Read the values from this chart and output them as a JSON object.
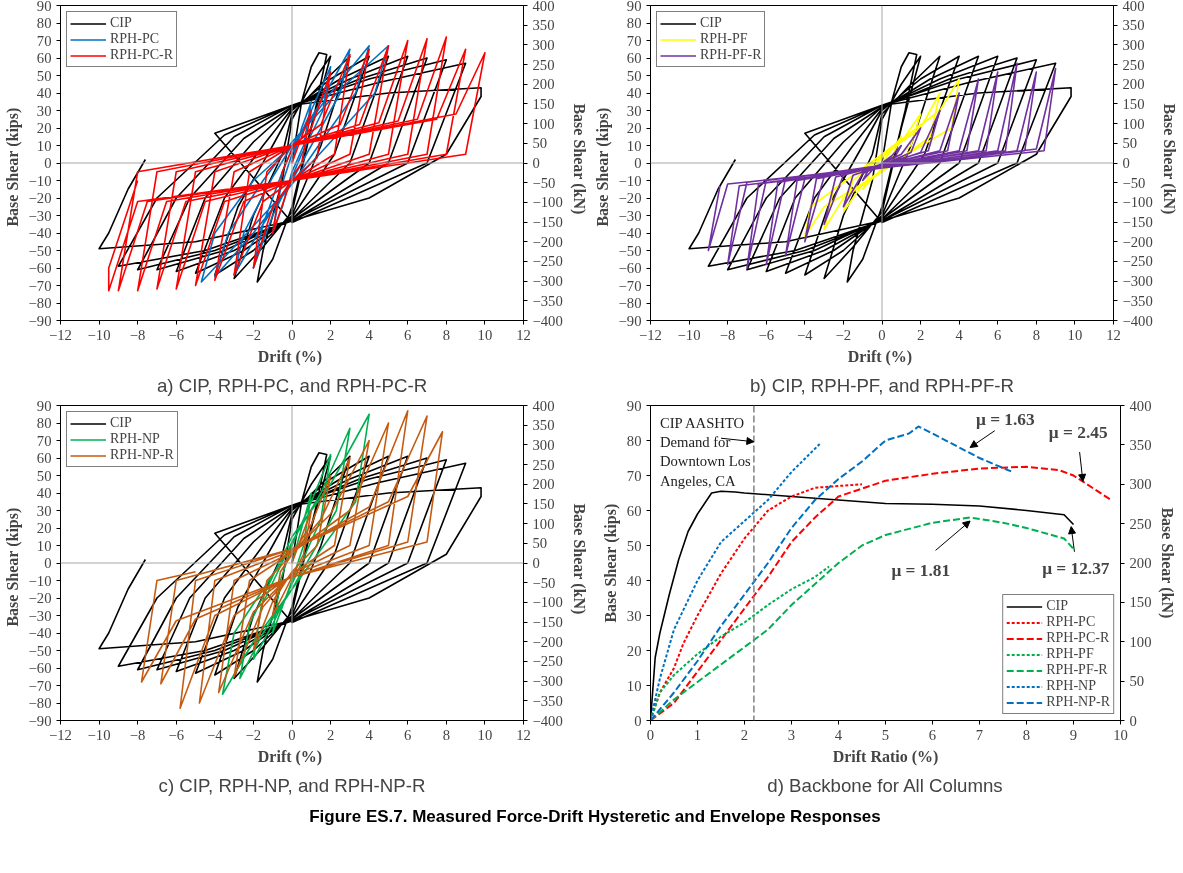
{
  "chart_data": [
    {
      "type": "line",
      "title": "a) CIP, RPH-PC, and RPH-PC-R",
      "xlabel": "Drift  (%)",
      "ylabel": "Base  Shear  (kips)",
      "y2label": "Base  Shear  (kN)",
      "xlim": [
        -12,
        12
      ],
      "xticks": [
        -12,
        -10,
        -8,
        -6,
        -4,
        -2,
        0,
        2,
        4,
        6,
        8,
        10,
        12
      ],
      "ylim": [
        -90,
        90
      ],
      "yticks": [
        -90,
        -80,
        -70,
        -60,
        -50,
        -40,
        -30,
        -20,
        -10,
        0,
        10,
        20,
        30,
        40,
        50,
        60,
        70,
        80,
        90
      ],
      "y2lim": [
        -400,
        400
      ],
      "y2ticks": [
        -400,
        -350,
        -300,
        -250,
        -200,
        -150,
        -100,
        -50,
        0,
        50,
        100,
        150,
        200,
        250,
        300,
        350,
        400
      ],
      "grid": false,
      "legend": "top left",
      "line_style": "solid",
      "ref_lines": [
        {
          "axis": "x",
          "value": 0,
          "color": "#a6a6a6"
        },
        {
          "axis": "y",
          "value": 0,
          "color": "#a6a6a6"
        }
      ],
      "series": [
        {
          "name": "CIP",
          "color": "#000000",
          "x": [
            0,
            0.5,
            1,
            1.4,
            1.8,
            1.2,
            0,
            -1,
            -1.8,
            -1.5,
            -0.5,
            0,
            1,
            2,
            1,
            0,
            -1.5,
            -3,
            -2,
            -0.5,
            0,
            1.5,
            3,
            1.5,
            0,
            -2,
            -4,
            -2.8,
            -1,
            0,
            2,
            4,
            2.2,
            0,
            -2.5,
            -5,
            -3.5,
            -1.5,
            0,
            2.5,
            5,
            3,
            0,
            -3,
            -6,
            -4.5,
            -2,
            0,
            3,
            6,
            4,
            0,
            -3.5,
            -7,
            -5.3,
            -2.5,
            0,
            3.5,
            7,
            5,
            0,
            -4,
            -8,
            -6,
            -3,
            0,
            4,
            8,
            6,
            0,
            -4.5,
            -9,
            -7,
            -3.5,
            0,
            4.5,
            9,
            7,
            0,
            -4,
            0,
            5,
            9.8,
            9.8,
            8,
            4,
            0,
            -5,
            -10,
            -9.5,
            -8.5,
            -7.6
          ],
          "values": [
            0,
            35,
            55,
            63,
            62,
            30,
            -25,
            -55,
            -68,
            -50,
            -10,
            25,
            45,
            61,
            20,
            -28,
            -48,
            -66,
            -30,
            5,
            28,
            45,
            61,
            10,
            -30,
            -50,
            -64,
            -25,
            10,
            30,
            48,
            61,
            5,
            -31,
            -50,
            -63,
            -20,
            10,
            31,
            48,
            61,
            0,
            -32,
            -50,
            -62,
            -20,
            12,
            32,
            48,
            61,
            0,
            -32,
            -50,
            -61,
            -20,
            14,
            32,
            48,
            60,
            0,
            -33,
            -50,
            -61,
            -20,
            15,
            33,
            48,
            59,
            0,
            -33,
            -50,
            -59,
            -20,
            16,
            33,
            46,
            57,
            0,
            -34,
            17,
            33,
            40,
            43,
            38,
            5,
            -20,
            -33,
            -45,
            -49,
            -40,
            -15,
            2
          ]
        },
        {
          "name": "RPH-PC",
          "color": "#0070c0",
          "x": [
            0,
            0.5,
            1,
            0.6,
            0,
            -0.5,
            -1,
            -0.6,
            0,
            1,
            2,
            1.6,
            0.5,
            0,
            -1,
            -2,
            -1.5,
            -0.5,
            0,
            1.5,
            3,
            2.5,
            1,
            0,
            -1.5,
            -3,
            -2.5,
            -1,
            0,
            2,
            4,
            3.3,
            1.5,
            0,
            -2,
            -4,
            -3.3,
            -1.5,
            0,
            2.5,
            5,
            4.3,
            2,
            0,
            -2.5,
            -4.7,
            -4,
            -2,
            0
          ],
          "values": [
            0,
            20,
            35,
            10,
            -5,
            -25,
            -40,
            -15,
            5,
            30,
            55,
            30,
            5,
            -8,
            -30,
            -60,
            -35,
            -5,
            8,
            35,
            65,
            40,
            10,
            -10,
            -35,
            -64,
            -40,
            -8,
            10,
            40,
            67,
            40,
            12,
            -12,
            -40,
            -65,
            -40,
            -10,
            12,
            42,
            67,
            40,
            12,
            -12,
            -42,
            -68,
            -40,
            -10,
            10
          ]
        },
        {
          "name": "RPH-PC-R",
          "color": "#ff0000",
          "x": [
            0,
            1,
            0.5,
            0,
            -1,
            -0.5,
            0,
            1,
            2,
            1.3,
            0,
            -1,
            -2,
            -1.3,
            0,
            1.5,
            3,
            2.2,
            0,
            -1.5,
            -3,
            -2.2,
            0,
            2.5,
            4,
            3,
            0,
            -2.5,
            -4,
            -3,
            0,
            3.5,
            5,
            4,
            0,
            -3.5,
            -5,
            -4,
            0,
            4.5,
            6,
            5,
            0,
            -4.5,
            -6,
            -5,
            0,
            5.5,
            7,
            6,
            0,
            -5.5,
            -7,
            -6,
            0,
            6.5,
            8,
            7,
            0,
            -6.5,
            -8,
            -7,
            0,
            7.5,
            9,
            8,
            0,
            -7.5,
            -9,
            -8,
            0,
            8.5,
            10,
            9,
            0,
            -8,
            -9.5,
            -9.5,
            -8
          ],
          "values": [
            0,
            30,
            0,
            -8,
            -40,
            -5,
            8,
            20,
            52,
            3,
            -10,
            -25,
            -60,
            -5,
            10,
            22,
            62,
            5,
            -10,
            -22,
            -64,
            -5,
            10,
            22,
            65,
            5,
            -10,
            -22,
            -67,
            -5,
            10,
            22,
            67,
            5,
            -10,
            -22,
            -70,
            -5,
            10,
            23,
            70,
            5,
            -10,
            -22,
            -72,
            -5,
            10,
            24,
            71,
            5,
            -10,
            -22,
            -72,
            -5,
            10,
            25,
            72,
            5,
            -10,
            -22,
            -73,
            -5,
            10,
            25,
            65,
            5,
            -10,
            -22,
            -73,
            -5,
            10,
            28,
            63,
            5,
            -10,
            -22,
            -73,
            -60,
            -10
          ]
        }
      ]
    },
    {
      "type": "line",
      "title": "b) CIP, RPH-PF, and RPH-PF-R",
      "xlabel": "Drift  (%)",
      "ylabel": "Base  Shear  (kips)",
      "y2label": "Base  Shear  (kN)",
      "xlim": [
        -12,
        12
      ],
      "xticks": [
        -12,
        -10,
        -8,
        -6,
        -4,
        -2,
        0,
        2,
        4,
        6,
        8,
        10,
        12
      ],
      "ylim": [
        -90,
        90
      ],
      "yticks": [
        -90,
        -80,
        -70,
        -60,
        -50,
        -40,
        -30,
        -20,
        -10,
        0,
        10,
        20,
        30,
        40,
        50,
        60,
        70,
        80,
        90
      ],
      "y2lim": [
        -400,
        400
      ],
      "y2ticks": [
        -400,
        -350,
        -300,
        -250,
        -200,
        -150,
        -100,
        -50,
        0,
        50,
        100,
        150,
        200,
        250,
        300,
        350,
        400
      ],
      "grid": false,
      "legend": "top left",
      "line_style": "solid",
      "ref_lines": [
        {
          "axis": "x",
          "value": 0,
          "color": "#a6a6a6"
        },
        {
          "axis": "y",
          "value": 0,
          "color": "#a6a6a6"
        }
      ],
      "series": [
        {
          "name": "CIP",
          "color": "#000000",
          "x": [
            0,
            0.5,
            1,
            1.4,
            1.8,
            1.2,
            0,
            -1,
            -1.8,
            -1.5,
            -0.5,
            0,
            1,
            2,
            1,
            0,
            -1.5,
            -3,
            -2,
            -0.5,
            0,
            1.5,
            3,
            1.5,
            0,
            -2,
            -4,
            -2.8,
            -1,
            0,
            2,
            4,
            2.2,
            0,
            -2.5,
            -5,
            -3.5,
            -1.5,
            0,
            2.5,
            5,
            3,
            0,
            -3,
            -6,
            -4.5,
            -2,
            0,
            3,
            6,
            4,
            0,
            -3.5,
            -7,
            -5.3,
            -2.5,
            0,
            3.5,
            7,
            5,
            0,
            -4,
            -8,
            -6,
            -3,
            0,
            4,
            8,
            6,
            0,
            -4.5,
            -9,
            -7,
            -3.5,
            0,
            4.5,
            9,
            7,
            0,
            -4,
            0,
            5,
            9.8,
            9.8,
            8,
            4,
            0,
            -5,
            -10,
            -9.5,
            -8.5,
            -7.6
          ],
          "values": [
            0,
            35,
            55,
            63,
            62,
            30,
            -25,
            -55,
            -68,
            -50,
            -10,
            25,
            45,
            61,
            20,
            -28,
            -48,
            -66,
            -30,
            5,
            28,
            45,
            61,
            10,
            -30,
            -50,
            -64,
            -25,
            10,
            30,
            48,
            61,
            5,
            -31,
            -50,
            -63,
            -20,
            10,
            31,
            48,
            61,
            0,
            -32,
            -50,
            -62,
            -20,
            12,
            32,
            48,
            61,
            0,
            -32,
            -50,
            -61,
            -20,
            14,
            32,
            48,
            60,
            0,
            -33,
            -50,
            -61,
            -20,
            15,
            33,
            48,
            59,
            0,
            -33,
            -50,
            -59,
            -20,
            16,
            33,
            46,
            57,
            0,
            -34,
            17,
            33,
            40,
            43,
            38,
            5,
            -20,
            -33,
            -45,
            -49,
            -40,
            -15,
            2
          ]
        },
        {
          "name": "RPH-PF",
          "color": "#ffff00",
          "x": [
            0,
            1,
            0.5,
            0,
            -1,
            -0.5,
            0,
            1,
            2,
            1.5,
            0,
            -1,
            -2,
            -1.5,
            0,
            2,
            3,
            2.5,
            0,
            -2,
            -3,
            -2.5,
            0,
            3,
            4,
            3.6,
            1,
            0,
            -3,
            -4,
            -3.7,
            -1,
            0
          ],
          "values": [
            0,
            15,
            3,
            -3,
            -15,
            -3,
            3,
            12,
            28,
            10,
            -4,
            -12,
            -28,
            -10,
            4,
            20,
            40,
            15,
            -5,
            -20,
            -38,
            -15,
            5,
            30,
            48,
            20,
            3,
            -5,
            -25,
            -42,
            -25,
            -3,
            3
          ]
        },
        {
          "name": "RPH-PF-R",
          "color": "#7030a0",
          "x": [
            0,
            0.5,
            1,
            0.7,
            -0.5,
            -1,
            -0.7,
            1,
            2,
            1.5,
            -1,
            -2,
            -1.5,
            2,
            3,
            2.4,
            -2,
            -3,
            -2.4,
            3,
            4,
            3.4,
            -3,
            -4,
            -3.4,
            4,
            5,
            4.4,
            -4,
            -5,
            -4.4,
            5,
            6,
            5.4,
            -5,
            -6,
            -5.4,
            6,
            7,
            6.4,
            -6,
            -7,
            -6.4,
            7,
            8,
            7.4,
            -7,
            -8,
            -7.4,
            8,
            9,
            8.4,
            -8,
            -9,
            -8.4
          ],
          "values": [
            0,
            4,
            10,
            4,
            -4,
            -10,
            -4,
            5,
            20,
            6,
            -6,
            -25,
            -7,
            6,
            30,
            7,
            -7,
            -35,
            -8,
            7,
            40,
            7,
            -8,
            -45,
            -9,
            7,
            48,
            7,
            -9,
            -53,
            -10,
            7,
            52,
            7,
            -9,
            -58,
            -11,
            7,
            57,
            7,
            -10,
            -60,
            -12,
            7,
            52,
            7,
            -11,
            -58,
            -13,
            8,
            54,
            7,
            -12,
            -50,
            -13
          ]
        }
      ]
    },
    {
      "type": "line",
      "title": "c) CIP, RPH-NP, and RPH-NP-R",
      "xlabel": "Drift  (%)",
      "ylabel": "Base  Shear  (kips)",
      "y2label": "Base  Shear  (kN)",
      "xlim": [
        -12,
        12
      ],
      "xticks": [
        -12,
        -10,
        -8,
        -6,
        -4,
        -2,
        0,
        2,
        4,
        6,
        8,
        10,
        12
      ],
      "ylim": [
        -90,
        90
      ],
      "yticks": [
        -90,
        -80,
        -70,
        -60,
        -50,
        -40,
        -30,
        -20,
        -10,
        0,
        10,
        20,
        30,
        40,
        50,
        60,
        70,
        80,
        90
      ],
      "y2lim": [
        -400,
        400
      ],
      "y2ticks": [
        -400,
        -350,
        -300,
        -250,
        -200,
        -150,
        -100,
        -50,
        0,
        50,
        100,
        150,
        200,
        250,
        300,
        350,
        400
      ],
      "grid": false,
      "legend": "top left",
      "line_style": "solid",
      "ref_lines": [
        {
          "axis": "x",
          "value": 0,
          "color": "#a6a6a6"
        },
        {
          "axis": "y",
          "value": 0,
          "color": "#a6a6a6"
        }
      ],
      "series": [
        {
          "name": "CIP",
          "color": "#000000",
          "x": [
            0,
            0.5,
            1,
            1.4,
            1.8,
            1.2,
            0,
            -1,
            -1.8,
            -1.5,
            -0.5,
            0,
            1,
            2,
            1,
            0,
            -1.5,
            -3,
            -2,
            -0.5,
            0,
            1.5,
            3,
            1.5,
            0,
            -2,
            -4,
            -2.8,
            -1,
            0,
            2,
            4,
            2.2,
            0,
            -2.5,
            -5,
            -3.5,
            -1.5,
            0,
            2.5,
            5,
            3,
            0,
            -3,
            -6,
            -4.5,
            -2,
            0,
            3,
            6,
            4,
            0,
            -3.5,
            -7,
            -5.3,
            -2.5,
            0,
            3.5,
            7,
            5,
            0,
            -4,
            -8,
            -6,
            -3,
            0,
            4,
            8,
            6,
            0,
            -4.5,
            -9,
            -7,
            -3.5,
            0,
            4.5,
            9,
            7,
            0,
            -4,
            0,
            5,
            9.8,
            9.8,
            8,
            4,
            0,
            -5,
            -10,
            -9.5,
            -8.5,
            -7.6
          ],
          "values": [
            0,
            35,
            55,
            63,
            62,
            30,
            -25,
            -55,
            -68,
            -50,
            -10,
            25,
            45,
            61,
            20,
            -28,
            -48,
            -66,
            -30,
            5,
            28,
            45,
            61,
            10,
            -30,
            -50,
            -64,
            -25,
            10,
            30,
            48,
            61,
            5,
            -31,
            -50,
            -63,
            -20,
            10,
            31,
            48,
            61,
            0,
            -32,
            -50,
            -62,
            -20,
            12,
            32,
            48,
            61,
            0,
            -32,
            -50,
            -61,
            -20,
            14,
            32,
            48,
            60,
            0,
            -33,
            -50,
            -61,
            -20,
            15,
            33,
            48,
            59,
            0,
            -33,
            -50,
            -59,
            -20,
            16,
            33,
            46,
            57,
            0,
            -34,
            17,
            33,
            40,
            43,
            38,
            5,
            -20,
            -33,
            -45,
            -49,
            -40,
            -15,
            2
          ]
        },
        {
          "name": "RPH-NP",
          "color": "#00b050",
          "x": [
            0,
            0.5,
            1,
            0.6,
            0,
            -0.5,
            -1,
            -0.6,
            0,
            1,
            2,
            1.5,
            0,
            -1,
            -2,
            -1.6,
            0,
            1.5,
            3,
            2.3,
            0,
            -1.5,
            -2.7,
            -2.2,
            0,
            2,
            4,
            3.3,
            0,
            -2,
            -3.6,
            -3,
            0
          ],
          "values": [
            0,
            20,
            40,
            10,
            -10,
            -25,
            -40,
            -10,
            10,
            35,
            62,
            25,
            -12,
            -35,
            -55,
            -25,
            12,
            40,
            77,
            30,
            -15,
            -40,
            -66,
            -35,
            15,
            45,
            85,
            35,
            -15,
            -45,
            -75,
            -40,
            10
          ]
        },
        {
          "name": "RPH-NP-R",
          "color": "#c55a11",
          "x": [
            0,
            1,
            0.6,
            -1,
            -0.6,
            0,
            1,
            2,
            1.3,
            0,
            -1,
            -2,
            -1.3,
            0,
            1.5,
            3,
            2.2,
            0,
            -1.5,
            -3,
            -2.2,
            0,
            2,
            4,
            3,
            0,
            -2,
            -3.8,
            -3,
            0,
            3,
            5,
            4,
            0,
            -3,
            -4.8,
            -4,
            0,
            4,
            6,
            5,
            0,
            -4,
            -5.8,
            -5,
            0,
            5,
            7,
            6,
            0,
            -5,
            -6.8,
            -6,
            0,
            6,
            7.8,
            7,
            0,
            -6,
            -7.8,
            -7,
            -5
          ],
          "values": [
            0,
            30,
            5,
            -30,
            -5,
            5,
            22,
            50,
            10,
            -5,
            -22,
            -50,
            -10,
            5,
            25,
            60,
            10,
            -6,
            -25,
            -65,
            -10,
            6,
            28,
            70,
            10,
            -6,
            -28,
            -74,
            -10,
            6,
            30,
            80,
            10,
            -7,
            -30,
            -80,
            -10,
            7,
            32,
            87,
            10,
            -8,
            -30,
            -83,
            -10,
            8,
            35,
            84,
            12,
            -8,
            -32,
            -69,
            -10,
            8,
            38,
            75,
            12,
            -8,
            -33,
            -68,
            -10,
            -5
          ]
        }
      ]
    },
    {
      "type": "line",
      "title": "d) Backbone for All Columns",
      "xlabel": "Drift Ratio (%)",
      "ylabel": "Base Shear (kips)",
      "y2label": "Base Shear (kN)",
      "xlim": [
        0,
        10
      ],
      "xticks": [
        0,
        1,
        2,
        3,
        4,
        5,
        6,
        7,
        8,
        9,
        10
      ],
      "ylim": [
        0,
        90
      ],
      "yticks": [
        0,
        10,
        20,
        30,
        40,
        50,
        60,
        70,
        80,
        90
      ],
      "y2lim": [
        0,
        400
      ],
      "y2ticks": [
        0,
        50,
        100,
        150,
        200,
        250,
        300,
        350,
        400
      ],
      "grid": false,
      "legend": "bottom right",
      "ref_lines": [
        {
          "axis": "x",
          "value": 2.2,
          "label": "CIP AASHTO\nDemand for\nDowntown Los\nAngeles, CA",
          "color": "#808080",
          "line_style": "dashed"
        }
      ],
      "annotations": [
        {
          "text": "μ = 1.63",
          "x": 6.8,
          "y": 78
        },
        {
          "text": "μ = 2.45",
          "x": 9.2,
          "y": 68.3
        },
        {
          "text": "μ = 1.81",
          "x": 6.8,
          "y": 57
        },
        {
          "text": "μ = 12.37",
          "x": 8.95,
          "y": 55.4
        },
        "Figure ES.7. Measured Force-Drift Hysteretic and Envelope Responses"
      ],
      "series": [
        {
          "name": "CIP",
          "color": "#000000",
          "line_style": "solid",
          "x": [
            0,
            0.1,
            0.2,
            0.4,
            0.6,
            0.8,
            1,
            1.3,
            1.5,
            1.8,
            2,
            3,
            4,
            5,
            6,
            7,
            8,
            8.8,
            9
          ],
          "values": [
            0,
            18,
            25,
            36,
            46,
            54,
            59,
            65,
            65.5,
            65.3,
            65,
            64,
            63,
            62,
            61.8,
            61.3,
            60,
            58.8,
            56
          ]
        },
        {
          "name": "RPH-PC",
          "color": "#ff0000",
          "line_style": "dotted",
          "x": [
            0,
            0.2,
            0.5,
            0.7,
            1,
            1.5,
            2,
            2.5,
            3,
            3.5,
            4,
            4.5
          ],
          "values": [
            0,
            8,
            15,
            22,
            30,
            42,
            52,
            60,
            64,
            66.5,
            67,
            67.5
          ]
        },
        {
          "name": "RPH-PC-R",
          "color": "#ff0000",
          "line_style": "dashed",
          "x": [
            0,
            0.2,
            0.5,
            1,
            1.5,
            2,
            2.5,
            3,
            3.5,
            4,
            5,
            6,
            7,
            8,
            8.7,
            9,
            9.8
          ],
          "values": [
            0,
            2,
            5,
            14,
            23,
            32,
            41,
            51,
            58,
            64,
            68.5,
            70.5,
            72,
            72.5,
            71.5,
            70,
            63
          ]
        },
        {
          "name": "RPH-PF",
          "color": "#00b050",
          "line_style": "dotted",
          "x": [
            0,
            0.2,
            0.5,
            1,
            1.5,
            2,
            2.5,
            3,
            3.5,
            3.8
          ],
          "values": [
            0,
            8,
            13,
            19,
            24,
            28,
            33,
            37.5,
            41,
            44
          ]
        },
        {
          "name": "RPH-PF-R",
          "color": "#00b050",
          "line_style": "dashed",
          "x": [
            0,
            0.5,
            1,
            1.5,
            2,
            2.5,
            3,
            3.5,
            4,
            4.5,
            5,
            6,
            6.8,
            7.5,
            8,
            8.8,
            9
          ],
          "values": [
            0,
            6,
            11,
            16,
            21,
            26,
            33,
            39,
            45,
            50,
            53,
            56.5,
            58,
            56.5,
            55,
            52,
            49
          ]
        },
        {
          "name": "RPH-NP",
          "color": "#0070c0",
          "line_style": "dotted",
          "x": [
            0,
            0.2,
            0.5,
            1,
            1.5,
            2,
            2.5,
            3,
            3.6
          ],
          "values": [
            0,
            12,
            26,
            40,
            51,
            57,
            63,
            71,
            79
          ]
        },
        {
          "name": "RPH-NP-R",
          "color": "#0070c0",
          "line_style": "dashed",
          "x": [
            0,
            0.5,
            1,
            1.5,
            2,
            2.5,
            3,
            3.5,
            4,
            4.5,
            5,
            5.5,
            5.7,
            6,
            7,
            7.7
          ],
          "values": [
            0,
            8,
            17,
            27,
            36,
            45,
            55,
            63,
            69,
            74,
            80,
            82,
            84,
            82,
            75,
            71
          ]
        }
      ]
    }
  ]
}
